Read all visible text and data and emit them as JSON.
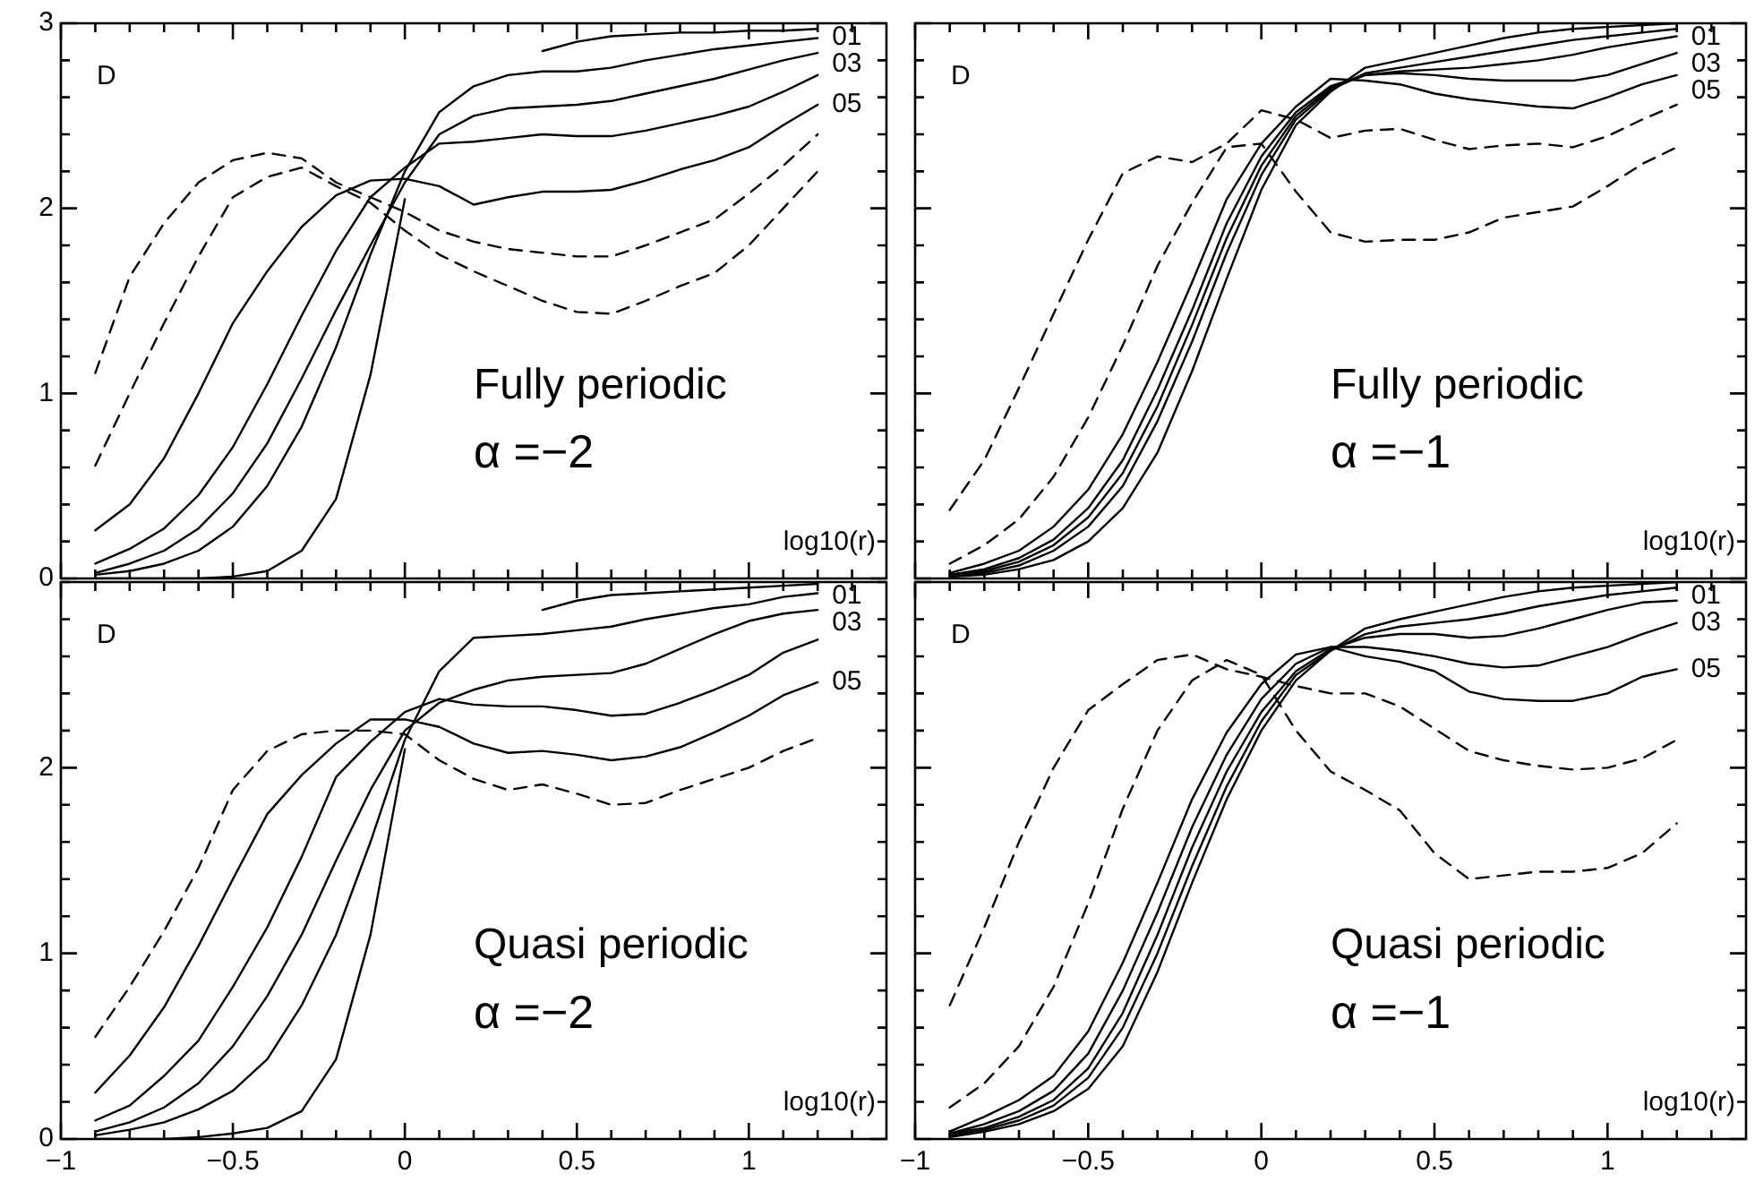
{
  "chart_data": [
    {
      "type": "line",
      "title": "Fully periodic",
      "subtitle": "α =−2",
      "xlabel": "log10(r)",
      "ylabel": "D",
      "line_style": "solid",
      "tick_labels": "y",
      "grid": false,
      "legend": "top right",
      "xlim": [
        -1,
        1.4
      ],
      "ylim": [
        0,
        3
      ],
      "xticks": [
        -1,
        {
          "value": -0.9,
          "label": null
        },
        {
          "value": -0.8,
          "label": null
        },
        {
          "value": -0.7,
          "label": null
        },
        {
          "value": -0.6,
          "label": null
        },
        -0.5,
        {
          "value": -0.4,
          "label": null
        },
        {
          "value": -0.3,
          "label": null
        },
        {
          "value": -0.2,
          "label": null
        },
        {
          "value": -0.1,
          "label": null
        },
        0,
        {
          "value": 0.1,
          "label": null
        },
        {
          "value": 0.2,
          "label": null
        },
        {
          "value": 0.3,
          "label": null
        },
        {
          "value": 0.4,
          "label": null
        },
        0.5,
        {
          "value": 0.6,
          "label": null
        },
        {
          "value": 0.7,
          "label": null
        },
        {
          "value": 0.8,
          "label": null
        },
        {
          "value": 0.9,
          "label": null
        },
        1,
        {
          "value": 1.1,
          "label": null
        },
        {
          "value": 1.2,
          "label": null
        },
        {
          "value": 1.3,
          "label": null
        }
      ],
      "yticks": [
        0,
        {
          "value": 0.2,
          "label": null
        },
        {
          "value": 0.4,
          "label": null
        },
        {
          "value": 0.6,
          "label": null
        },
        {
          "value": 0.8,
          "label": null
        },
        1,
        {
          "value": 1.2,
          "label": null
        },
        {
          "value": 1.4,
          "label": null
        },
        {
          "value": 1.6,
          "label": null
        },
        {
          "value": 1.8,
          "label": null
        },
        2,
        {
          "value": 2.2,
          "label": null
        },
        {
          "value": 2.4,
          "label": null
        },
        {
          "value": 2.6,
          "label": null
        },
        {
          "value": 2.8,
          "label": null
        },
        3
      ],
      "x": [
        -0.9,
        -0.8,
        -0.7,
        -0.6,
        -0.5,
        -0.4,
        -0.3,
        -0.2,
        -0.1,
        0,
        0.1,
        0.2,
        0.3,
        0.4,
        0.5,
        0.6,
        0.7,
        0.8,
        0.9,
        1,
        1.1,
        1.2
      ],
      "series": [
        {
          "name": "01",
          "color": "#000000",
          "values": [
            0,
            0,
            0,
            0,
            0.01,
            0.04,
            0.15,
            0.43,
            1.1,
            2.05,
            null,
            null,
            null,
            2.85,
            2.9,
            2.93,
            2.94,
            2.95,
            2.95,
            2.96,
            2.96,
            2.97
          ]
        },
        {
          "color": "#000000",
          "values": [
            0.02,
            0.04,
            0.08,
            0.15,
            0.28,
            0.5,
            0.82,
            1.25,
            1.75,
            2.2,
            2.52,
            2.66,
            2.72,
            2.74,
            2.74,
            2.76,
            2.8,
            2.83,
            2.86,
            2.88,
            2.9,
            2.92
          ]
        },
        {
          "name": "03",
          "color": "#000000",
          "values": [
            0.03,
            0.08,
            0.15,
            0.27,
            0.46,
            0.73,
            1.08,
            1.45,
            1.8,
            2.14,
            2.4,
            2.5,
            2.54,
            2.55,
            2.56,
            2.58,
            2.62,
            2.66,
            2.7,
            2.75,
            2.8,
            2.84
          ]
        },
        {
          "color": "#000000",
          "values": [
            0.08,
            0.16,
            0.27,
            0.45,
            0.71,
            1.05,
            1.42,
            1.77,
            2.06,
            2.22,
            2.35,
            2.36,
            2.38,
            2.4,
            2.39,
            2.39,
            2.42,
            2.46,
            2.5,
            2.55,
            2.63,
            2.72
          ]
        },
        {
          "name": "05",
          "color": "#000000",
          "values": [
            0.26,
            0.4,
            0.65,
            1.0,
            1.38,
            1.66,
            1.9,
            2.07,
            2.15,
            2.16,
            2.12,
            2.02,
            2.06,
            2.09,
            2.09,
            2.1,
            2.15,
            2.21,
            2.26,
            2.33,
            2.45,
            2.56
          ]
        },
        {
          "color": "#000000",
          "line_style": "dashed",
          "values": [
            1.11,
            1.63,
            1.92,
            2.14,
            2.26,
            2.3,
            2.27,
            2.14,
            2.06,
            1.98,
            1.88,
            1.82,
            1.78,
            1.76,
            1.74,
            1.74,
            1.8,
            1.87,
            1.94,
            2.08,
            2.23,
            2.4
          ]
        },
        {
          "color": "#000000",
          "line_style": "dashed",
          "values": [
            0.61,
            1.0,
            1.38,
            1.74,
            2.06,
            2.17,
            2.22,
            2.12,
            2.03,
            1.88,
            1.75,
            1.66,
            1.58,
            1.5,
            1.44,
            1.43,
            1.5,
            1.58,
            1.65,
            1.8,
            2.0,
            2.2
          ]
        }
      ]
    },
    {
      "type": "line",
      "title": "Fully periodic",
      "subtitle": "α =−1",
      "xlabel": "log10(r)",
      "ylabel": "D",
      "line_style": "solid",
      "tick_labels": false,
      "grid": false,
      "legend": "top right",
      "xlim": [
        -1,
        1.4
      ],
      "ylim": [
        0,
        3
      ],
      "xticks": [
        -1,
        {
          "value": -0.9,
          "label": null
        },
        {
          "value": -0.8,
          "label": null
        },
        {
          "value": -0.7,
          "label": null
        },
        {
          "value": -0.6,
          "label": null
        },
        -0.5,
        {
          "value": -0.4,
          "label": null
        },
        {
          "value": -0.3,
          "label": null
        },
        {
          "value": -0.2,
          "label": null
        },
        {
          "value": -0.1,
          "label": null
        },
        0,
        {
          "value": 0.1,
          "label": null
        },
        {
          "value": 0.2,
          "label": null
        },
        {
          "value": 0.3,
          "label": null
        },
        {
          "value": 0.4,
          "label": null
        },
        0.5,
        {
          "value": 0.6,
          "label": null
        },
        {
          "value": 0.7,
          "label": null
        },
        {
          "value": 0.8,
          "label": null
        },
        {
          "value": 0.9,
          "label": null
        },
        1,
        {
          "value": 1.1,
          "label": null
        },
        {
          "value": 1.2,
          "label": null
        },
        {
          "value": 1.3,
          "label": null
        }
      ],
      "yticks": [
        0,
        {
          "value": 0.2,
          "label": null
        },
        {
          "value": 0.4,
          "label": null
        },
        {
          "value": 0.6,
          "label": null
        },
        {
          "value": 0.8,
          "label": null
        },
        1,
        {
          "value": 1.2,
          "label": null
        },
        {
          "value": 1.4,
          "label": null
        },
        {
          "value": 1.6,
          "label": null
        },
        {
          "value": 1.8,
          "label": null
        },
        2,
        {
          "value": 2.2,
          "label": null
        },
        {
          "value": 2.4,
          "label": null
        },
        {
          "value": 2.6,
          "label": null
        },
        {
          "value": 2.8,
          "label": null
        },
        3
      ],
      "x": [
        -0.9,
        -0.8,
        -0.7,
        -0.6,
        -0.5,
        -0.4,
        -0.3,
        -0.2,
        -0.1,
        0,
        0.1,
        0.2,
        0.3,
        0.4,
        0.5,
        0.6,
        0.7,
        0.8,
        0.9,
        1,
        1.1,
        1.2
      ],
      "series": [
        {
          "name": "01",
          "color": "#000000",
          "values": [
            0.01,
            0.02,
            0.05,
            0.1,
            0.2,
            0.38,
            0.68,
            1.12,
            1.62,
            2.1,
            2.45,
            2.63,
            2.76,
            2.8,
            2.84,
            2.88,
            2.92,
            2.95,
            2.97,
            2.98,
            2.99,
            3.0
          ]
        },
        {
          "color": "#000000",
          "values": [
            0.01,
            0.03,
            0.07,
            0.15,
            0.28,
            0.5,
            0.85,
            1.28,
            1.76,
            2.18,
            2.48,
            2.64,
            2.73,
            2.76,
            2.79,
            2.82,
            2.85,
            2.88,
            2.91,
            2.93,
            2.95,
            2.97
          ]
        },
        {
          "name": "03",
          "color": "#000000",
          "values": [
            0.02,
            0.04,
            0.09,
            0.18,
            0.33,
            0.57,
            0.93,
            1.37,
            1.84,
            2.23,
            2.5,
            2.65,
            2.72,
            2.74,
            2.75,
            2.76,
            2.78,
            2.8,
            2.83,
            2.87,
            2.9,
            2.93
          ]
        },
        {
          "color": "#000000",
          "values": [
            0.02,
            0.05,
            0.11,
            0.21,
            0.38,
            0.64,
            1.02,
            1.45,
            1.92,
            2.28,
            2.52,
            2.66,
            2.72,
            2.73,
            2.72,
            2.7,
            2.69,
            2.69,
            2.69,
            2.72,
            2.78,
            2.84
          ]
        },
        {
          "name": "05",
          "color": "#000000",
          "values": [
            0.03,
            0.08,
            0.15,
            0.28,
            0.48,
            0.78,
            1.17,
            1.6,
            2.05,
            2.35,
            2.55,
            2.7,
            2.69,
            2.67,
            2.62,
            2.59,
            2.57,
            2.55,
            2.54,
            2.6,
            2.67,
            2.72
          ]
        },
        {
          "color": "#000000",
          "line_style": "dashed",
          "values": [
            0.37,
            0.64,
            1.03,
            1.43,
            1.83,
            2.19,
            2.28,
            2.25,
            2.35,
            2.53,
            2.48,
            2.38,
            2.42,
            2.43,
            2.37,
            2.32,
            2.34,
            2.35,
            2.33,
            2.39,
            2.48,
            2.56
          ]
        },
        {
          "color": "#000000",
          "line_style": "dashed",
          "values": [
            0.08,
            0.18,
            0.32,
            0.55,
            0.87,
            1.26,
            1.69,
            2.03,
            2.33,
            2.35,
            2.09,
            1.87,
            1.82,
            1.83,
            1.83,
            1.87,
            1.95,
            1.98,
            2.01,
            2.12,
            2.24,
            2.33
          ]
        }
      ]
    },
    {
      "type": "line",
      "title": "Quasi periodic",
      "subtitle": "α =−2",
      "xlabel": "log10(r)",
      "ylabel": "D",
      "line_style": "solid",
      "grid": false,
      "legend": "top right",
      "xlim": [
        -1,
        1.4
      ],
      "ylim": [
        0,
        3
      ],
      "xticks": [
        -1,
        {
          "value": -0.9,
          "label": null
        },
        {
          "value": -0.8,
          "label": null
        },
        {
          "value": -0.7,
          "label": null
        },
        {
          "value": -0.6,
          "label": null
        },
        -0.5,
        {
          "value": -0.4,
          "label": null
        },
        {
          "value": -0.3,
          "label": null
        },
        {
          "value": -0.2,
          "label": null
        },
        {
          "value": -0.1,
          "label": null
        },
        0,
        {
          "value": 0.1,
          "label": null
        },
        {
          "value": 0.2,
          "label": null
        },
        {
          "value": 0.3,
          "label": null
        },
        {
          "value": 0.4,
          "label": null
        },
        0.5,
        {
          "value": 0.6,
          "label": null
        },
        {
          "value": 0.7,
          "label": null
        },
        {
          "value": 0.8,
          "label": null
        },
        {
          "value": 0.9,
          "label": null
        },
        1,
        {
          "value": 1.1,
          "label": null
        },
        {
          "value": 1.2,
          "label": null
        },
        {
          "value": 1.3,
          "label": null
        }
      ],
      "yticks": [
        0,
        {
          "value": 0.2,
          "label": null
        },
        {
          "value": 0.4,
          "label": null
        },
        {
          "value": 0.6,
          "label": null
        },
        {
          "value": 0.8,
          "label": null
        },
        1,
        {
          "value": 1.2,
          "label": null
        },
        {
          "value": 1.4,
          "label": null
        },
        {
          "value": 1.6,
          "label": null
        },
        {
          "value": 1.8,
          "label": null
        },
        2,
        {
          "value": 2.2,
          "label": null
        },
        {
          "value": 2.4,
          "label": null
        },
        {
          "value": 2.6,
          "label": null
        },
        {
          "value": 2.8,
          "label": null
        },
        {
          "value": 3,
          "label": null
        }
      ],
      "x": [
        -0.9,
        -0.8,
        -0.7,
        -0.6,
        -0.5,
        -0.4,
        -0.3,
        -0.2,
        -0.1,
        0,
        0.1,
        0.2,
        0.3,
        0.4,
        0.5,
        0.6,
        0.7,
        0.8,
        0.9,
        1,
        1.1,
        1.2
      ],
      "series": [
        {
          "name": "01",
          "color": "#000000",
          "values": [
            0,
            0,
            0,
            0.01,
            0.03,
            0.06,
            0.15,
            0.43,
            1.1,
            2.1,
            null,
            null,
            null,
            2.85,
            2.9,
            2.93,
            2.94,
            2.95,
            2.96,
            2.97,
            2.98,
            2.99
          ]
        },
        {
          "color": "#000000",
          "values": [
            0.02,
            0.05,
            0.09,
            0.16,
            0.26,
            0.43,
            0.72,
            1.1,
            1.6,
            2.15,
            2.52,
            2.7,
            2.71,
            2.72,
            2.74,
            2.76,
            2.8,
            2.83,
            2.86,
            2.88,
            2.92,
            2.94
          ]
        },
        {
          "name": "03",
          "color": "#000000",
          "values": [
            0.04,
            0.09,
            0.17,
            0.3,
            0.5,
            0.77,
            1.1,
            1.5,
            1.88,
            2.2,
            2.35,
            2.42,
            2.47,
            2.49,
            2.5,
            2.51,
            2.56,
            2.64,
            2.72,
            2.79,
            2.83,
            2.85
          ]
        },
        {
          "color": "#000000",
          "values": [
            0.1,
            0.18,
            0.34,
            0.53,
            0.82,
            1.14,
            1.52,
            1.95,
            2.14,
            2.3,
            2.37,
            2.34,
            2.33,
            2.33,
            2.31,
            2.28,
            2.29,
            2.35,
            2.42,
            2.5,
            2.62,
            2.69
          ]
        },
        {
          "name": "05",
          "color": "#000000",
          "values": [
            0.25,
            0.45,
            0.71,
            1.04,
            1.4,
            1.75,
            1.96,
            2.13,
            2.26,
            2.26,
            2.22,
            2.13,
            2.08,
            2.09,
            2.07,
            2.04,
            2.06,
            2.11,
            2.19,
            2.28,
            2.39,
            2.46
          ]
        },
        {
          "color": "#000000",
          "line_style": "dashed",
          "values": [
            0.55,
            0.82,
            1.12,
            1.46,
            1.88,
            2.09,
            2.18,
            2.2,
            2.2,
            2.18,
            2.04,
            1.94,
            1.88,
            1.91,
            1.86,
            1.8,
            1.81,
            1.88,
            1.94,
            2.0,
            2.09,
            2.16
          ]
        }
      ]
    },
    {
      "type": "line",
      "title": "Quasi periodic",
      "subtitle": "α =−1",
      "xlabel": "log10(r)",
      "ylabel": "D",
      "line_style": "solid",
      "tick_labels": "x",
      "grid": false,
      "legend": "top right",
      "xlim": [
        -1,
        1.4
      ],
      "ylim": [
        0,
        3
      ],
      "xticks": [
        -1,
        {
          "value": -0.9,
          "label": null
        },
        {
          "value": -0.8,
          "label": null
        },
        {
          "value": -0.7,
          "label": null
        },
        {
          "value": -0.6,
          "label": null
        },
        -0.5,
        {
          "value": -0.4,
          "label": null
        },
        {
          "value": -0.3,
          "label": null
        },
        {
          "value": -0.2,
          "label": null
        },
        {
          "value": -0.1,
          "label": null
        },
        0,
        {
          "value": 0.1,
          "label": null
        },
        {
          "value": 0.2,
          "label": null
        },
        {
          "value": 0.3,
          "label": null
        },
        {
          "value": 0.4,
          "label": null
        },
        0.5,
        {
          "value": 0.6,
          "label": null
        },
        {
          "value": 0.7,
          "label": null
        },
        {
          "value": 0.8,
          "label": null
        },
        {
          "value": 0.9,
          "label": null
        },
        1,
        {
          "value": 1.1,
          "label": null
        },
        {
          "value": 1.2,
          "label": null
        },
        {
          "value": 1.3,
          "label": null
        }
      ],
      "yticks": [
        0,
        {
          "value": 0.2,
          "label": null
        },
        {
          "value": 0.4,
          "label": null
        },
        {
          "value": 0.6,
          "label": null
        },
        {
          "value": 0.8,
          "label": null
        },
        1,
        {
          "value": 1.2,
          "label": null
        },
        {
          "value": 1.4,
          "label": null
        },
        {
          "value": 1.6,
          "label": null
        },
        {
          "value": 1.8,
          "label": null
        },
        2,
        {
          "value": 2.2,
          "label": null
        },
        {
          "value": 2.4,
          "label": null
        },
        {
          "value": 2.6,
          "label": null
        },
        {
          "value": 2.8,
          "label": null
        },
        3
      ],
      "x": [
        -0.9,
        -0.8,
        -0.7,
        -0.6,
        -0.5,
        -0.4,
        -0.3,
        -0.2,
        -0.1,
        0,
        0.1,
        0.2,
        0.3,
        0.4,
        0.5,
        0.6,
        0.7,
        0.8,
        0.9,
        1,
        1.1,
        1.2
      ],
      "series": [
        {
          "name": "01",
          "color": "#000000",
          "values": [
            0.01,
            0.04,
            0.08,
            0.15,
            0.27,
            0.5,
            0.9,
            1.38,
            1.83,
            2.2,
            2.47,
            2.63,
            2.75,
            2.8,
            2.84,
            2.88,
            2.92,
            2.95,
            2.97,
            2.98,
            2.99,
            3.0
          ]
        },
        {
          "color": "#000000",
          "values": [
            0.02,
            0.05,
            0.1,
            0.18,
            0.33,
            0.6,
            1.0,
            1.47,
            1.9,
            2.25,
            2.5,
            2.63,
            2.72,
            2.76,
            2.78,
            2.8,
            2.83,
            2.87,
            2.9,
            2.93,
            2.95,
            2.97
          ]
        },
        {
          "name": "03",
          "color": "#000000",
          "values": [
            0.03,
            0.06,
            0.12,
            0.21,
            0.38,
            0.68,
            1.1,
            1.57,
            1.98,
            2.3,
            2.52,
            2.64,
            2.7,
            2.72,
            2.72,
            2.7,
            2.71,
            2.75,
            2.8,
            2.85,
            2.89,
            2.9
          ]
        },
        {
          "color": "#000000",
          "values": [
            0.03,
            0.08,
            0.15,
            0.26,
            0.46,
            0.8,
            1.22,
            1.68,
            2.07,
            2.37,
            2.56,
            2.65,
            2.65,
            2.63,
            2.6,
            2.56,
            2.54,
            2.55,
            2.6,
            2.65,
            2.72,
            2.78
          ]
        },
        {
          "name": "05",
          "color": "#000000",
          "values": [
            0.04,
            0.12,
            0.21,
            0.34,
            0.58,
            0.95,
            1.38,
            1.83,
            2.19,
            2.45,
            2.61,
            2.65,
            2.6,
            2.57,
            2.52,
            2.41,
            2.37,
            2.36,
            2.36,
            2.4,
            2.49,
            2.53
          ]
        },
        {
          "color": "#000000",
          "line_style": "dashed",
          "values": [
            0.72,
            1.14,
            1.6,
            2.0,
            2.31,
            2.45,
            2.58,
            2.61,
            2.53,
            2.49,
            2.44,
            2.4,
            2.4,
            2.33,
            2.21,
            2.09,
            2.04,
            2.01,
            1.99,
            2.0,
            2.05,
            2.15
          ]
        },
        {
          "color": "#000000",
          "line_style": "dashed",
          "values": [
            0.17,
            0.3,
            0.5,
            0.82,
            1.27,
            1.78,
            2.2,
            2.47,
            2.58,
            2.5,
            2.2,
            1.98,
            1.88,
            1.77,
            1.54,
            1.4,
            1.42,
            1.44,
            1.44,
            1.46,
            1.54,
            1.7
          ]
        }
      ]
    }
  ]
}
